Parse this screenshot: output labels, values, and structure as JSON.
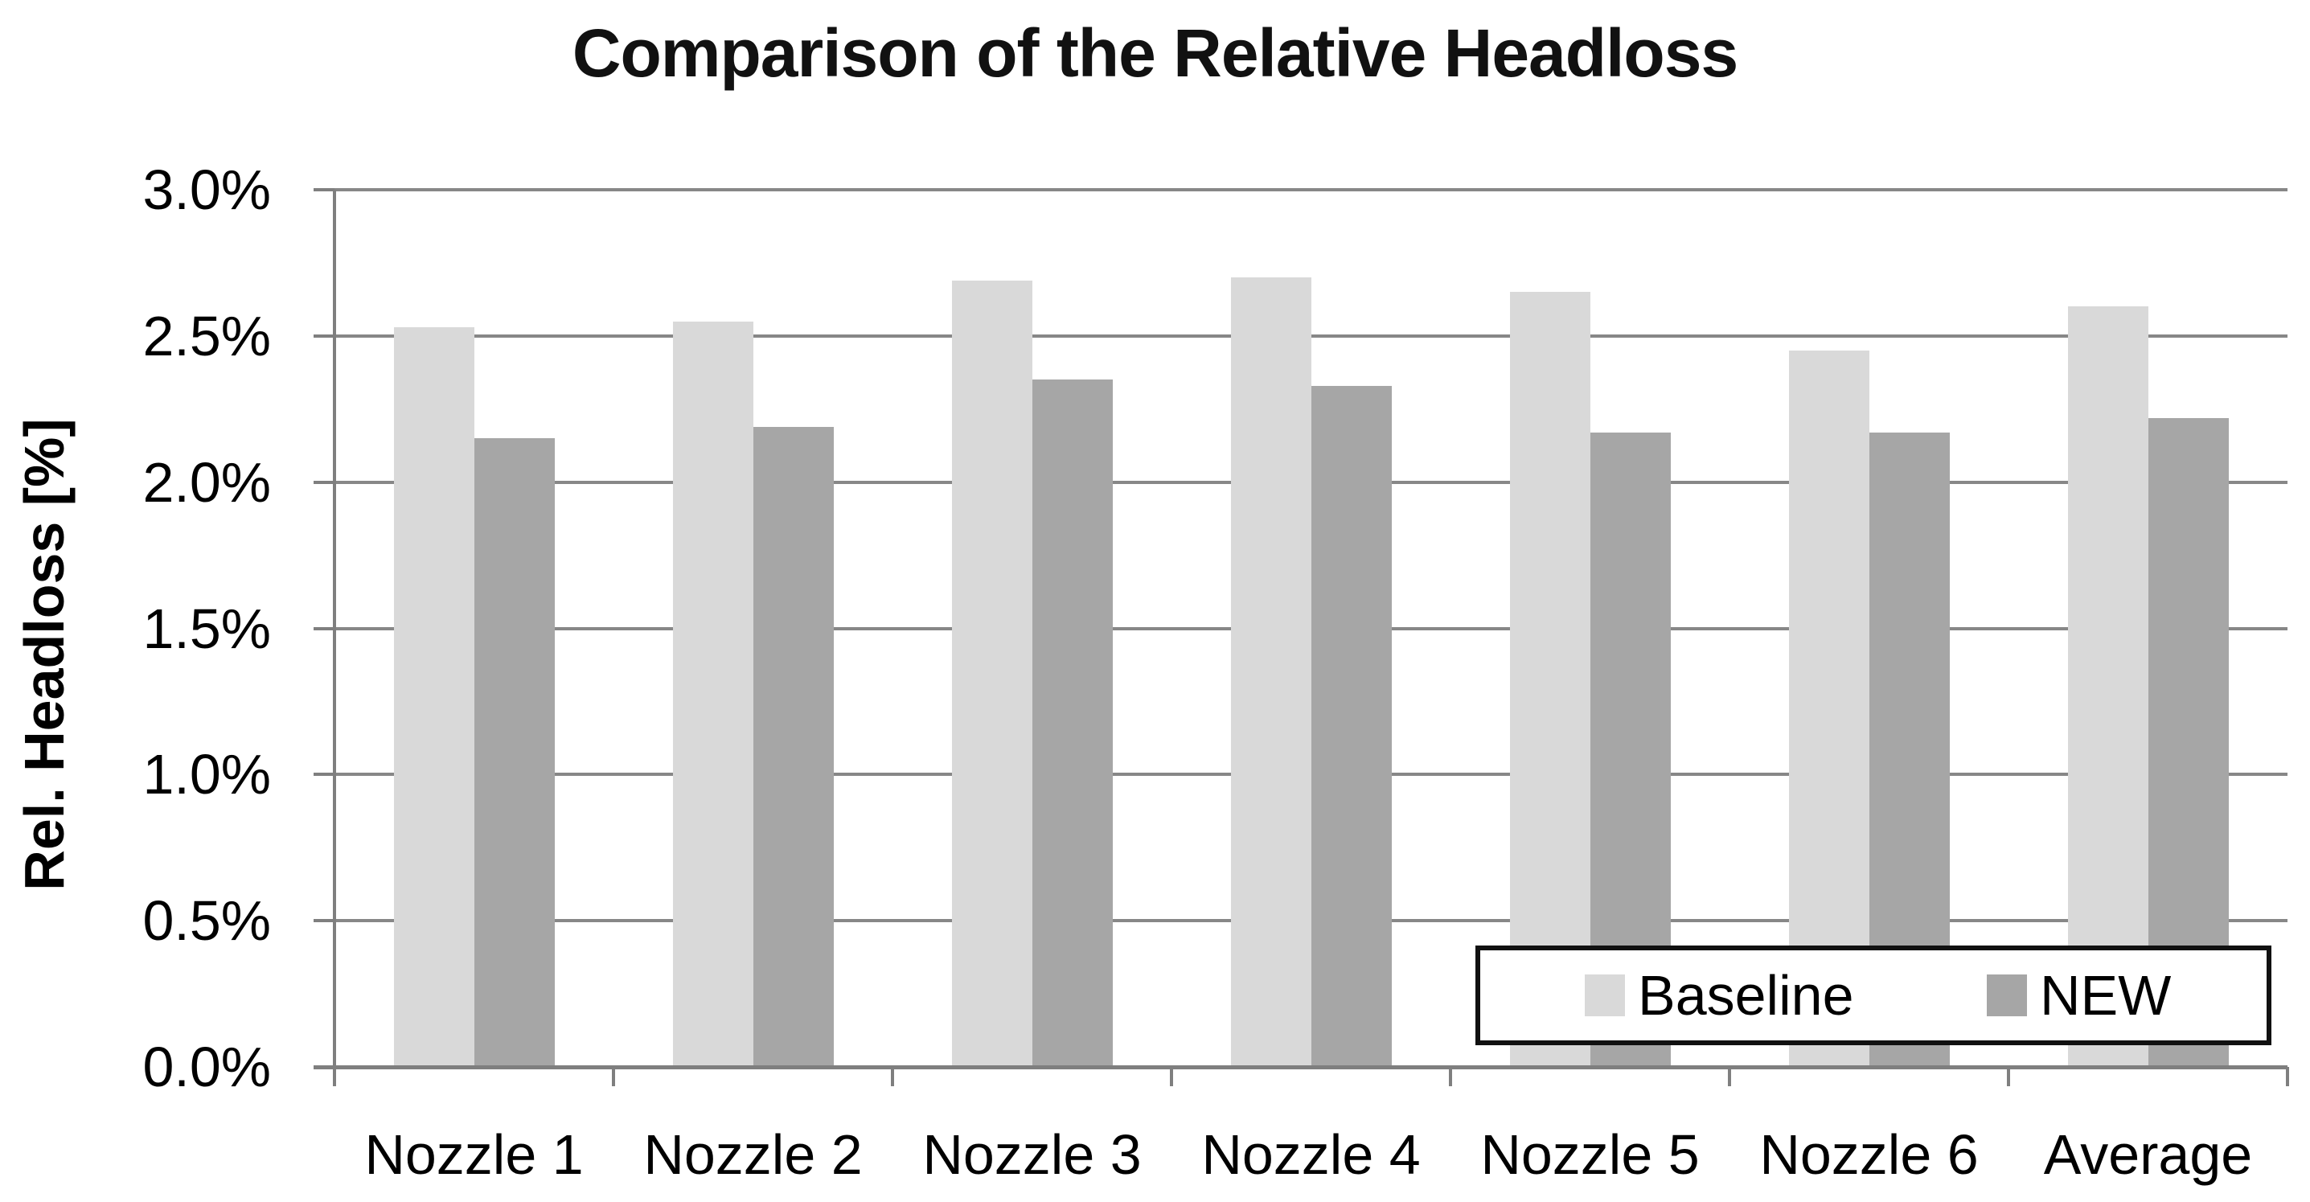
{
  "chart_data": {
    "type": "bar",
    "title": "Comparison of the Relative Headloss",
    "xlabel": "",
    "ylabel": "Rel. Headloss [%]",
    "categories": [
      "Nozzle 1",
      "Nozzle 2",
      "Nozzle 3",
      "Nozzle 4",
      "Nozzle 5",
      "Nozzle 6",
      "Average"
    ],
    "series": [
      {
        "name": "Baseline",
        "color": "#d9d9d9",
        "values": [
          2.53,
          2.55,
          2.69,
          2.7,
          2.65,
          2.45,
          2.6
        ]
      },
      {
        "name": "NEW",
        "color": "#a6a6a6",
        "values": [
          2.15,
          2.19,
          2.35,
          2.33,
          2.17,
          2.17,
          2.22
        ]
      }
    ],
    "ylim": [
      0.0,
      3.0
    ],
    "yticks": [
      {
        "value": 0.0,
        "label": "0.0%"
      },
      {
        "value": 0.5,
        "label": "0.5%"
      },
      {
        "value": 1.0,
        "label": "1.0%"
      },
      {
        "value": 1.5,
        "label": "1.5%"
      },
      {
        "value": 2.0,
        "label": "2.0%"
      },
      {
        "value": 2.5,
        "label": "2.5%"
      },
      {
        "value": 3.0,
        "label": "3.0%"
      }
    ],
    "grid": true,
    "legend_position": "inside-bottom-right"
  },
  "colors": {
    "background": "#ffffff",
    "bar_baseline": "#d9d9d9",
    "bar_new": "#a6a6a6",
    "gridline": "#878787",
    "axis_line": "#7f7f7f",
    "text": "#000000",
    "legend_border": "#111111"
  }
}
